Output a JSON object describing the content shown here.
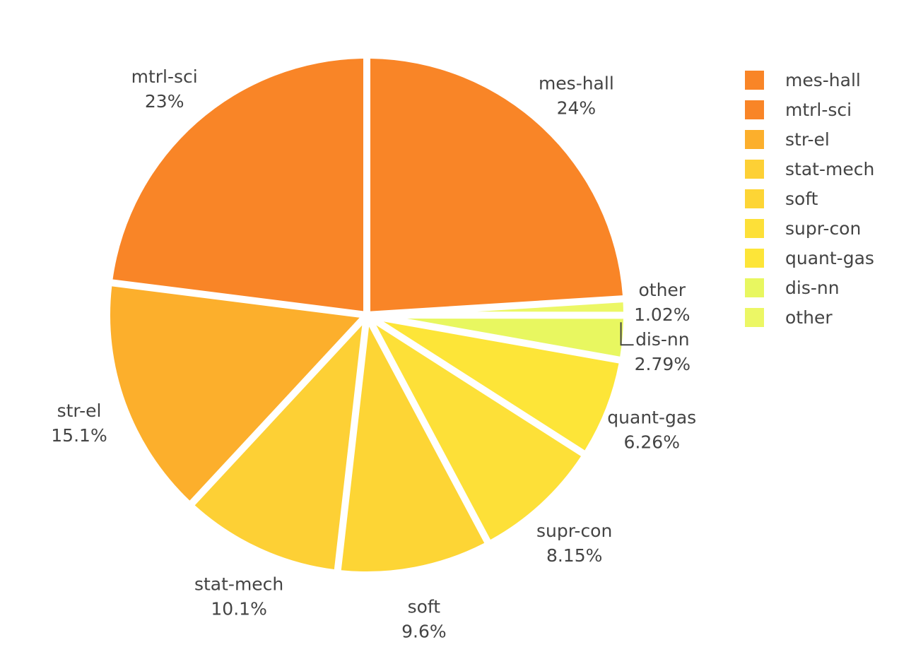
{
  "chart_data": {
    "type": "pie",
    "title": "",
    "slices": [
      {
        "label": "mes-hall",
        "value": 24.0,
        "pct_text": "24%",
        "color": "#f98527"
      },
      {
        "label": "other",
        "value": 1.02,
        "pct_text": "1.02%",
        "color": "#ecf765"
      },
      {
        "label": "dis-nn",
        "value": 2.79,
        "pct_text": "2.79%",
        "color": "#e8f760"
      },
      {
        "label": "quant-gas",
        "value": 6.26,
        "pct_text": "6.26%",
        "color": "#fde538"
      },
      {
        "label": "supr-con",
        "value": 8.15,
        "pct_text": "8.15%",
        "color": "#fde038"
      },
      {
        "label": "soft",
        "value": 9.6,
        "pct_text": "9.6%",
        "color": "#fdd535"
      },
      {
        "label": "stat-mech",
        "value": 10.1,
        "pct_text": "10.1%",
        "color": "#fdd035"
      },
      {
        "label": "str-el",
        "value": 15.1,
        "pct_text": "15.1%",
        "color": "#fcaf2c"
      },
      {
        "label": "mtrl-sci",
        "value": 23.0,
        "pct_text": "23%",
        "color": "#f98527"
      }
    ],
    "legend": {
      "placement": "top-right",
      "entries": [
        {
          "label": "mes-hall",
          "color": "#f98527"
        },
        {
          "label": "mtrl-sci",
          "color": "#f98527"
        },
        {
          "label": "str-el",
          "color": "#fcaf2c"
        },
        {
          "label": "stat-mech",
          "color": "#fdd035"
        },
        {
          "label": "soft",
          "color": "#fdd535"
        },
        {
          "label": "supr-con",
          "color": "#fde038"
        },
        {
          "label": "quant-gas",
          "color": "#fde538"
        },
        {
          "label": "dis-nn",
          "color": "#e8f760"
        },
        {
          "label": "other",
          "color": "#ecf765"
        }
      ]
    }
  }
}
